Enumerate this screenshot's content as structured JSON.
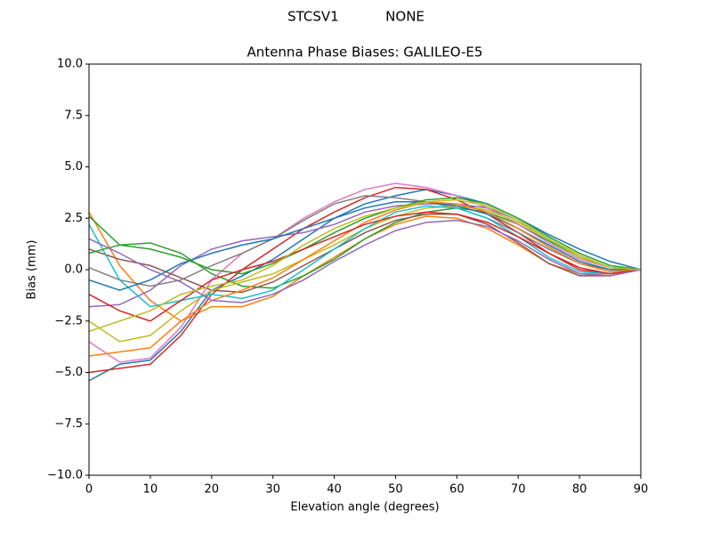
{
  "chart_data": {
    "type": "line",
    "suptitle": "STCSV1           NONE",
    "title": "Antenna Phase Biases: GALILEO-E5",
    "xlabel": "Elevation angle (degrees)",
    "ylabel": "Bias (mm)",
    "x": [
      0,
      5,
      10,
      15,
      20,
      25,
      30,
      35,
      40,
      45,
      50,
      55,
      60,
      65,
      70,
      75,
      80,
      85,
      90
    ],
    "xlim": [
      0,
      90
    ],
    "xticks": [
      0,
      10,
      20,
      30,
      40,
      50,
      60,
      70,
      80,
      90
    ],
    "ylim": [
      -10,
      10
    ],
    "yticks": [
      {
        "value": -10,
        "label": "−10.0"
      },
      {
        "value": -7.5,
        "label": "−7.5"
      },
      {
        "value": -5,
        "label": "−5.0"
      },
      {
        "value": -2.5,
        "label": "−2.5"
      },
      {
        "value": 0,
        "label": "0.0"
      },
      2.5,
      {
        "value": 5,
        "label": "5.0"
      },
      7.5,
      {
        "value": 10,
        "label": "10.0"
      }
    ],
    "grid": false,
    "series": [
      {
        "color": "#1f77b4",
        "values": [
          -5.4,
          -4.6,
          -4.4,
          -3.0,
          -1.0,
          -0.3,
          0.5,
          1.5,
          2.5,
          3.2,
          3.6,
          3.9,
          3.6,
          3.2,
          2.5,
          1.7,
          1.0,
          0.4,
          0
        ]
      },
      {
        "color": "#ff7f0e",
        "values": [
          2.8,
          0.2,
          -1.5,
          -2.5,
          -1.8,
          -1.8,
          -1.3,
          -0.3,
          0.6,
          1.5,
          2.2,
          2.6,
          2.5,
          2.0,
          1.2,
          0.3,
          -0.2,
          -0.2,
          0
        ]
      },
      {
        "color": "#2ca02c",
        "values": [
          2.6,
          1.2,
          1.3,
          0.8,
          -0.2,
          -0.8,
          -0.9,
          -0.3,
          0.5,
          1.5,
          2.3,
          2.8,
          3.0,
          2.8,
          2.2,
          1.4,
          0.6,
          0.1,
          0
        ]
      },
      {
        "color": "#d62728",
        "values": [
          -5.0,
          -4.8,
          -4.6,
          -3.2,
          -1.2,
          0.0,
          1.0,
          2.0,
          2.8,
          3.5,
          4.0,
          3.9,
          3.4,
          2.7,
          1.8,
          0.8,
          0.0,
          -0.2,
          0
        ]
      },
      {
        "color": "#9467bd",
        "values": [
          -1.8,
          -1.7,
          -1.0,
          0.2,
          1.0,
          1.4,
          1.6,
          1.8,
          2.2,
          2.8,
          3.1,
          3.2,
          3.2,
          3.0,
          2.4,
          1.5,
          0.6,
          0.1,
          0
        ]
      },
      {
        "color": "#8c564b",
        "values": [
          1.0,
          0.5,
          0.2,
          -0.4,
          -1.0,
          -1.1,
          -0.6,
          0.2,
          1.0,
          1.8,
          2.4,
          2.7,
          2.7,
          2.2,
          1.3,
          0.3,
          -0.3,
          -0.3,
          0
        ]
      },
      {
        "color": "#e377c2",
        "values": [
          -3.5,
          -4.5,
          -4.3,
          -2.8,
          -0.5,
          0.8,
          1.5,
          2.5,
          3.3,
          3.9,
          4.2,
          4.0,
          3.6,
          3.0,
          2.2,
          1.3,
          0.5,
          0.1,
          0
        ]
      },
      {
        "color": "#7f7f7f",
        "values": [
          0.1,
          -0.5,
          -0.8,
          -0.5,
          0.2,
          0.8,
          1.5,
          2.4,
          3.2,
          3.6,
          3.5,
          3.3,
          3.0,
          2.5,
          1.8,
          1.0,
          0.3,
          0.0,
          0
        ]
      },
      {
        "color": "#bcbd22",
        "values": [
          -2.5,
          -3.5,
          -3.2,
          -2.0,
          -1.0,
          -0.6,
          -0.2,
          0.5,
          1.2,
          2.0,
          2.6,
          3.0,
          3.1,
          2.9,
          2.3,
          1.5,
          0.7,
          0.1,
          0
        ]
      },
      {
        "color": "#17becf",
        "values": [
          2.2,
          -0.5,
          -1.8,
          -1.5,
          -1.2,
          -1.4,
          -1.0,
          0.0,
          1.0,
          2.0,
          2.8,
          3.1,
          3.0,
          2.5,
          1.6,
          0.6,
          -0.1,
          -0.2,
          0
        ]
      },
      {
        "color": "#1f77b4",
        "values": [
          -0.5,
          -1.0,
          -0.5,
          0.3,
          0.8,
          1.2,
          1.5,
          2.0,
          2.5,
          3.0,
          3.3,
          3.3,
          3.1,
          2.7,
          2.0,
          1.2,
          0.4,
          0.0,
          0
        ]
      },
      {
        "color": "#ff7f0e",
        "values": [
          -4.2,
          -4.0,
          -3.8,
          -2.5,
          -1.5,
          -1.0,
          -0.4,
          0.5,
          1.4,
          2.3,
          2.9,
          3.3,
          3.2,
          2.8,
          2.0,
          1.1,
          0.3,
          -0.1,
          0
        ]
      },
      {
        "color": "#2ca02c",
        "values": [
          0.8,
          1.2,
          1.0,
          0.6,
          0.0,
          -0.2,
          0.3,
          1.0,
          1.8,
          2.5,
          3.0,
          3.4,
          3.5,
          3.2,
          2.5,
          1.6,
          0.8,
          0.2,
          0
        ]
      },
      {
        "color": "#d62728",
        "values": [
          -1.2,
          -2.0,
          -2.5,
          -1.5,
          -0.5,
          0.0,
          0.4,
          1.0,
          1.6,
          2.2,
          2.6,
          2.8,
          2.7,
          2.3,
          1.6,
          0.8,
          0.1,
          -0.2,
          0
        ]
      },
      {
        "color": "#9467bd",
        "values": [
          1.5,
          0.8,
          0.0,
          -0.6,
          -1.5,
          -1.6,
          -1.2,
          -0.5,
          0.4,
          1.2,
          1.9,
          2.3,
          2.4,
          2.1,
          1.4,
          0.5,
          -0.2,
          -0.3,
          0
        ]
      },
      {
        "color": "#bcbd22",
        "values": [
          -3.0,
          -2.5,
          -2.0,
          -1.2,
          -0.8,
          -0.5,
          0.2,
          1.2,
          2.0,
          2.6,
          3.0,
          3.3,
          3.4,
          3.1,
          2.4,
          1.5,
          0.6,
          0.1,
          0
        ]
      }
    ]
  }
}
